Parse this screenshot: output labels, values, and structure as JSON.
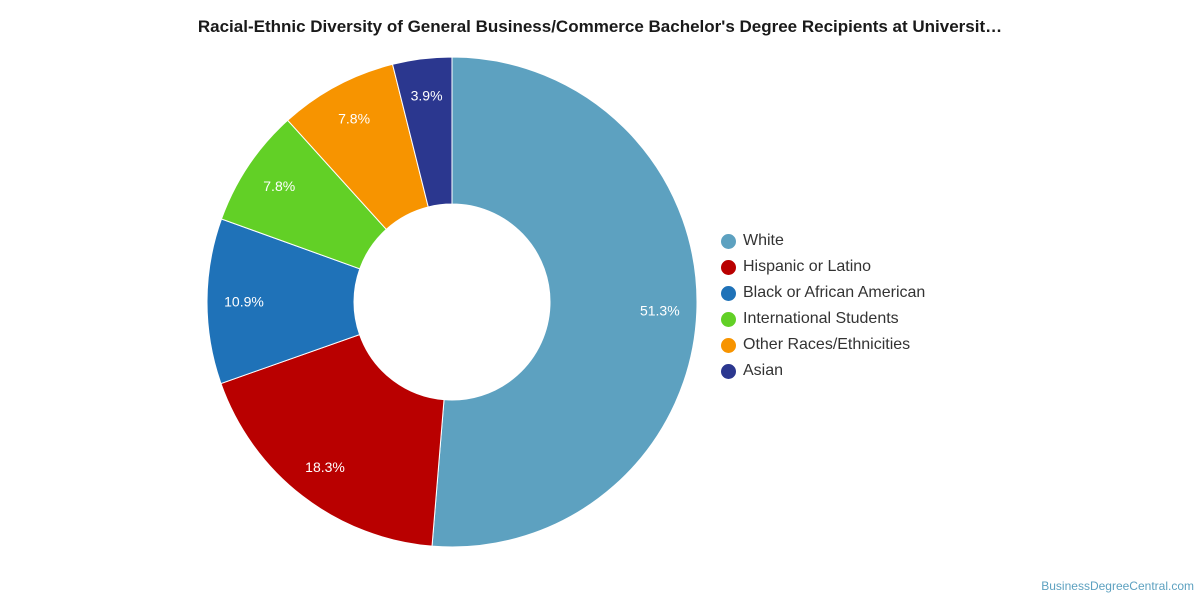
{
  "chart_data": {
    "type": "pie",
    "title": "Racial-Ethnic Diversity of General Business/Commerce Bachelor's Degree Recipients at Universit…",
    "labels": [
      "White",
      "Hispanic or Latino",
      "Black or African American",
      "International Students",
      "Other Races/Ethnicities",
      "Asian"
    ],
    "values": [
      51.3,
      18.3,
      10.9,
      7.8,
      7.8,
      3.9
    ],
    "value_labels": [
      "51.3%",
      "18.3%",
      "10.9%",
      "7.8%",
      "7.8%",
      "3.9%"
    ],
    "colors": [
      "#5da1c0",
      "#b90000",
      "#1f72b8",
      "#62d026",
      "#f79400",
      "#2b378f"
    ],
    "donut": true,
    "legend_position": "right"
  },
  "credit": "BusinessDegreeCentral.com"
}
